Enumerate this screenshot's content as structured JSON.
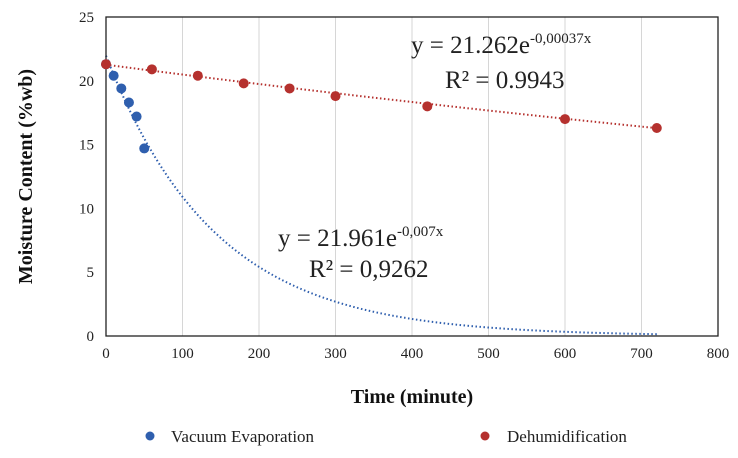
{
  "chart_data": {
    "type": "scatter",
    "xlabel": "Time (minute)",
    "ylabel": "Moisture Content (%wb)",
    "xlim": [
      0,
      800
    ],
    "ylim": [
      0,
      25
    ],
    "xticks": [
      "0",
      "100",
      "200",
      "300",
      "400",
      "500",
      "600",
      "700",
      "800"
    ],
    "yticks": [
      "0",
      "5",
      "10",
      "15",
      "20",
      "25"
    ],
    "grid": "vertical",
    "legend_position": "bottom",
    "series": [
      {
        "name": "Vacuum Evaporation",
        "color": "#2f5fae",
        "x": [
          0,
          10,
          20,
          30,
          40,
          50
        ],
        "y": [
          21.3,
          20.4,
          19.4,
          18.3,
          17.2,
          14.7
        ],
        "trendline": {
          "type": "exponential",
          "a": 21.961,
          "b": -0.007,
          "x_range": [
            0,
            720
          ],
          "equation_base": "y = 21.961e",
          "equation_exponent": "-0,007x",
          "r2_label": "R² = 0,9262"
        }
      },
      {
        "name": "Dehumidification",
        "color": "#b5312e",
        "x": [
          0,
          60,
          120,
          180,
          240,
          300,
          420,
          600,
          720
        ],
        "y": [
          21.3,
          20.9,
          20.4,
          19.8,
          19.4,
          18.8,
          18.0,
          17.0,
          16.3
        ],
        "trendline": {
          "type": "exponential",
          "a": 21.262,
          "b": -0.00037,
          "x_range": [
            0,
            720
          ],
          "equation_base": "y = 21.262e",
          "equation_exponent": "-0,00037x",
          "r2_label": "R² = 0.9943"
        }
      }
    ]
  }
}
